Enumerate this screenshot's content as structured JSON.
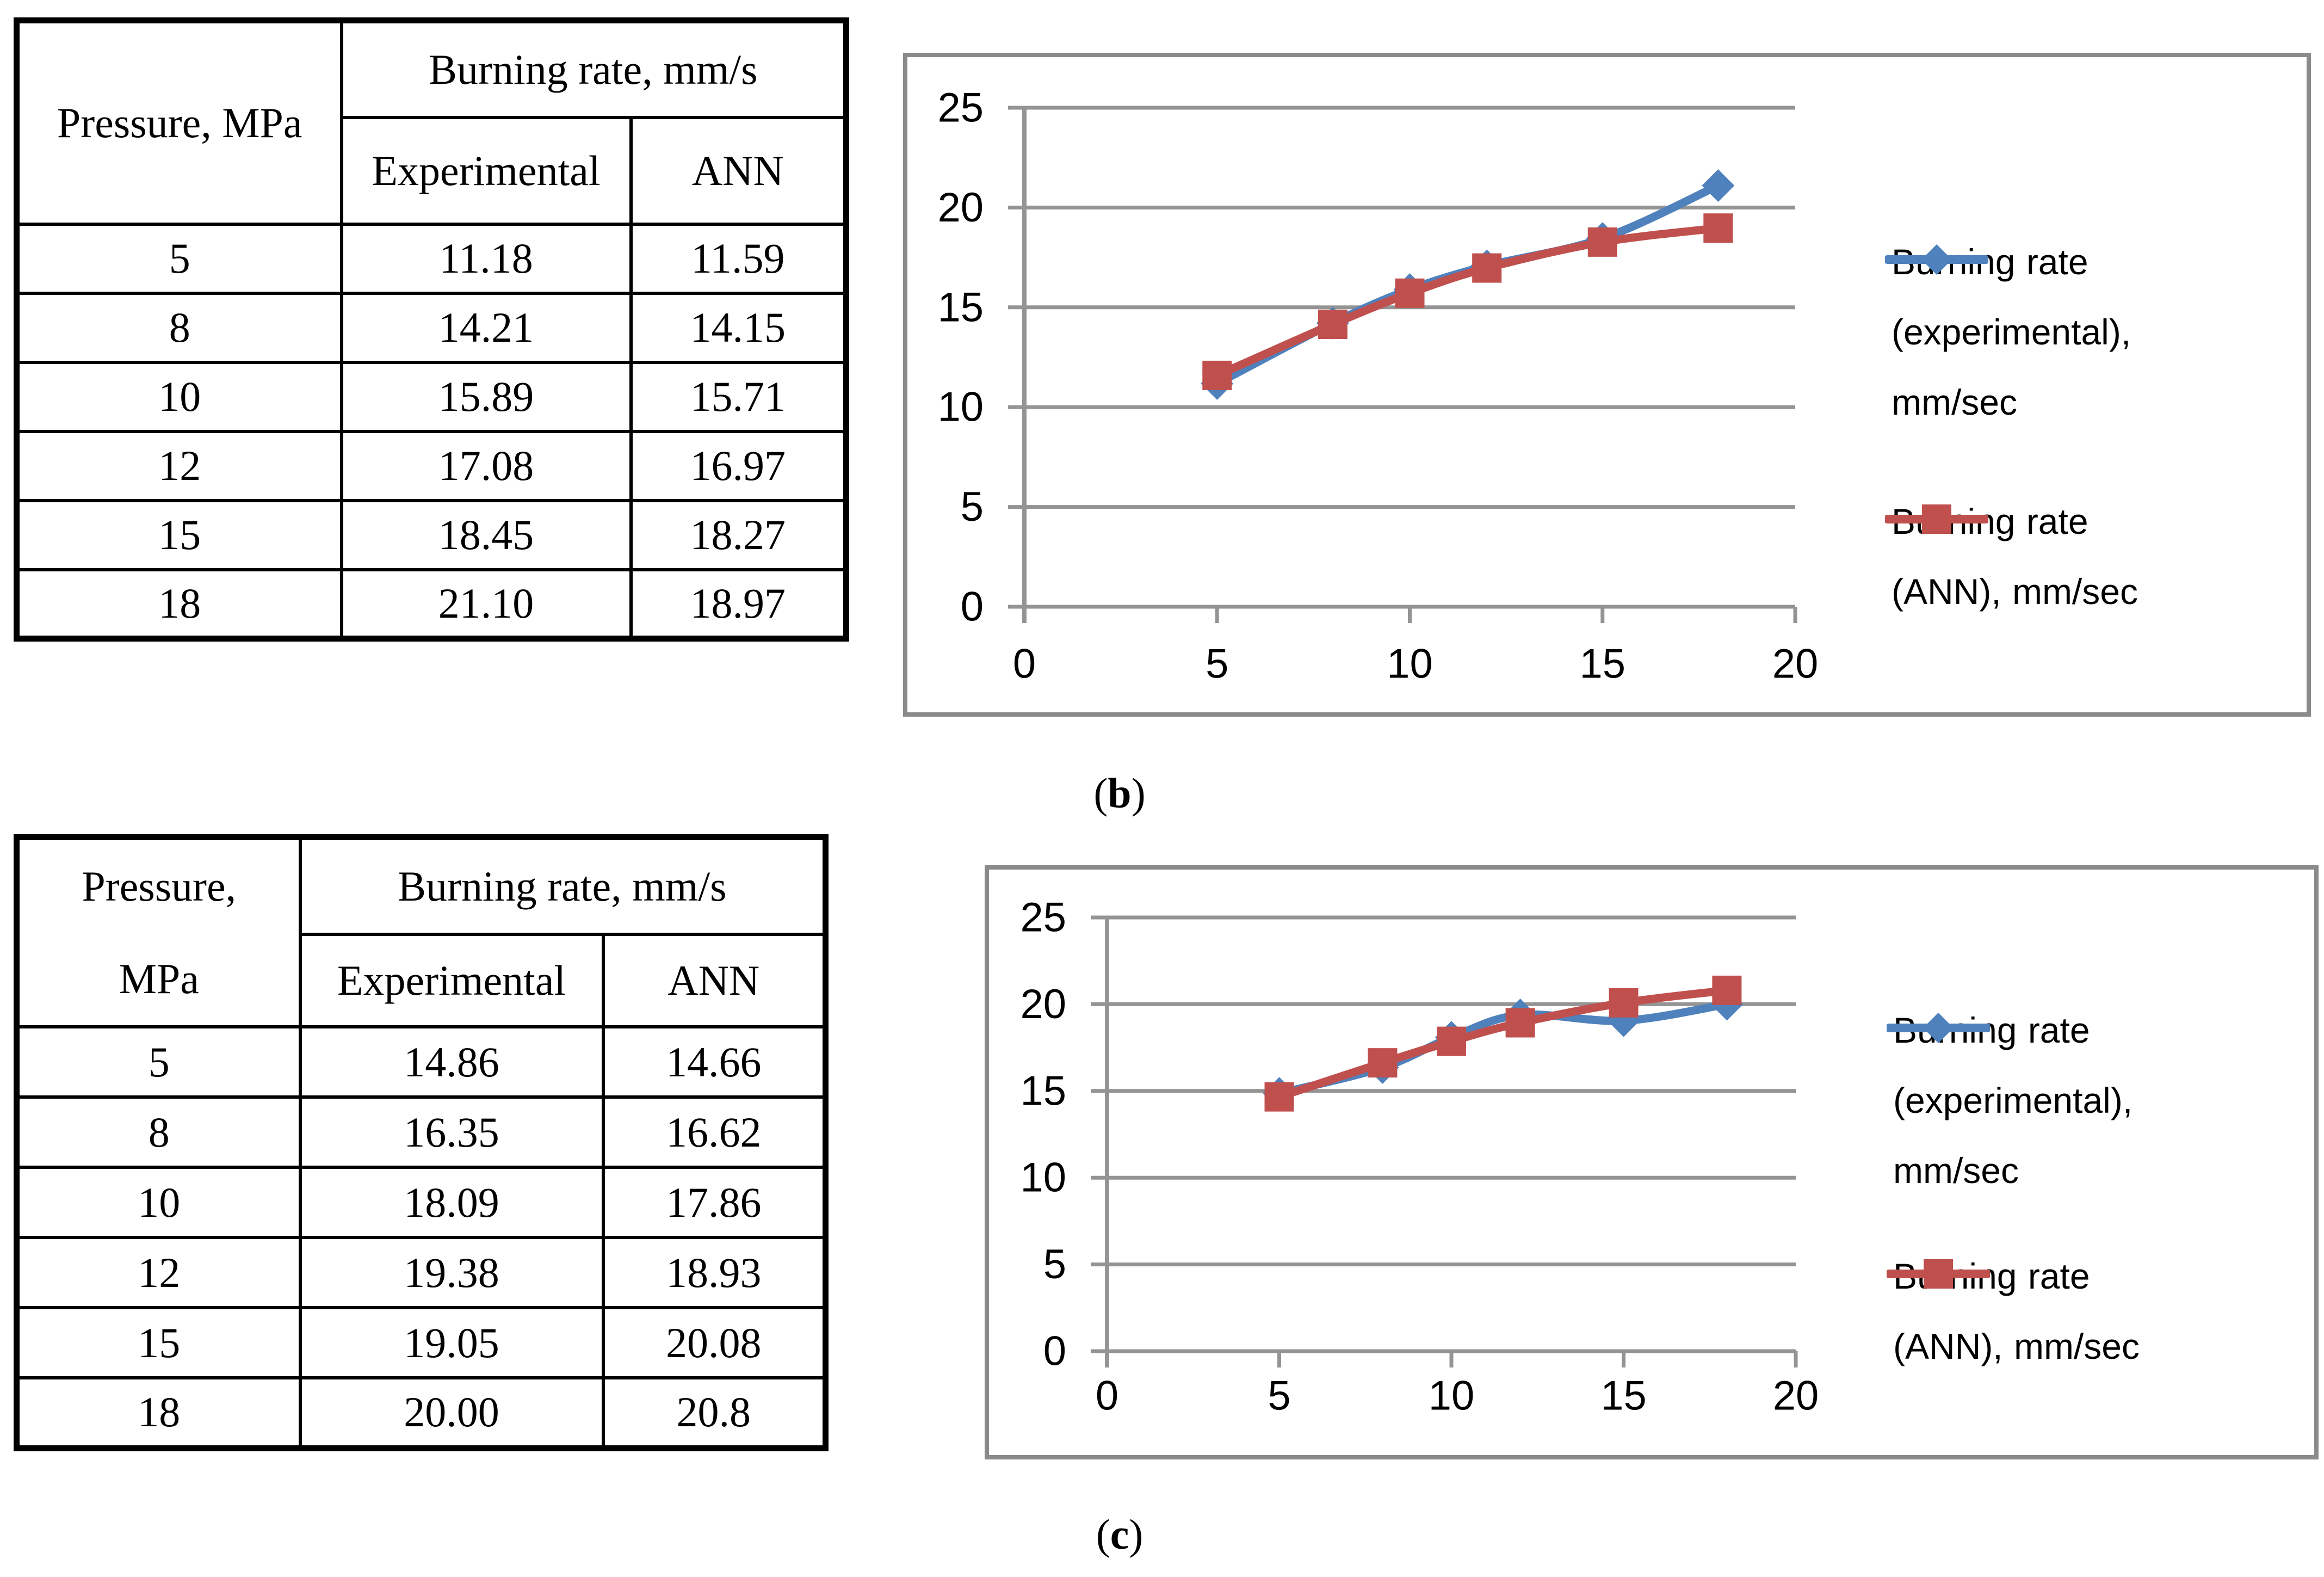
{
  "colors": {
    "experimental": "#4F81BD",
    "ann": "#C0504D",
    "grid": "#949494",
    "chart_border": "#8a8a8a",
    "table_border": "#000000",
    "text": "#000000"
  },
  "tables": [
    {
      "title": "burning-rate-table-b",
      "col1_header_lines": [
        "Pressure, MPa"
      ],
      "group_header": "Burning rate, mm/s",
      "sub_headers": [
        "Experimental",
        "ANN"
      ],
      "rows": [
        [
          "5",
          "11.18",
          "11.59"
        ],
        [
          "8",
          "14.21",
          "14.15"
        ],
        [
          "10",
          "15.89",
          "15.71"
        ],
        [
          "12",
          "17.08",
          "16.97"
        ],
        [
          "15",
          "18.45",
          "18.27"
        ],
        [
          "18",
          "21.10",
          "18.97"
        ]
      ]
    },
    {
      "title": "burning-rate-table-c",
      "col1_header_lines": [
        "Pressure,",
        "MPa"
      ],
      "group_header": "Burning rate, mm/s",
      "sub_headers": [
        "Experimental",
        "ANN"
      ],
      "rows": [
        [
          "5",
          "14.86",
          "14.66"
        ],
        [
          "8",
          "16.35",
          "16.62"
        ],
        [
          "10",
          "18.09",
          "17.86"
        ],
        [
          "12",
          "19.38",
          "18.93"
        ],
        [
          "15",
          "19.05",
          "20.08"
        ],
        [
          "18",
          "20.00",
          "20.8"
        ]
      ]
    }
  ],
  "chart_data": [
    {
      "id": "b",
      "type": "line",
      "title": "",
      "xlabel": "",
      "ylabel": "",
      "x": [
        5,
        8,
        10,
        12,
        15,
        18
      ],
      "series": [
        {
          "name": "Burning rate (experimental), mm/sec",
          "color": "#4F81BD",
          "marker": "diamond",
          "values": [
            11.18,
            14.21,
            15.89,
            17.08,
            18.45,
            21.1
          ]
        },
        {
          "name": "Burning rate (ANN), mm/sec",
          "color": "#C0504D",
          "marker": "square",
          "values": [
            11.59,
            14.15,
            15.71,
            16.97,
            18.27,
            18.97
          ]
        }
      ],
      "xlim": [
        0,
        20
      ],
      "ylim": [
        0,
        25
      ],
      "xticks": [
        0,
        5,
        10,
        15,
        20
      ],
      "yticks": [
        0,
        5,
        10,
        15,
        20,
        25
      ],
      "grid": "horizontal",
      "legend_position": "right"
    },
    {
      "id": "c",
      "type": "line",
      "title": "",
      "xlabel": "",
      "ylabel": "",
      "x": [
        5,
        8,
        10,
        12,
        15,
        18
      ],
      "series": [
        {
          "name": "Burning rate (experimental), mm/sec",
          "color": "#4F81BD",
          "marker": "diamond",
          "values": [
            14.86,
            16.35,
            18.09,
            19.38,
            19.05,
            20.0
          ]
        },
        {
          "name": "Burning rate (ANN), mm/sec",
          "color": "#C0504D",
          "marker": "square",
          "values": [
            14.66,
            16.62,
            17.86,
            18.93,
            20.08,
            20.8
          ]
        }
      ],
      "xlim": [
        0,
        20
      ],
      "ylim": [
        0,
        25
      ],
      "xticks": [
        0,
        5,
        10,
        15,
        20
      ],
      "yticks": [
        0,
        5,
        10,
        15,
        20,
        25
      ],
      "grid": "horizontal",
      "legend_position": "right"
    }
  ],
  "captions": [
    {
      "open": "(",
      "letter": "b",
      "close": ")"
    },
    {
      "open": "(",
      "letter": "c",
      "close": ")"
    }
  ]
}
